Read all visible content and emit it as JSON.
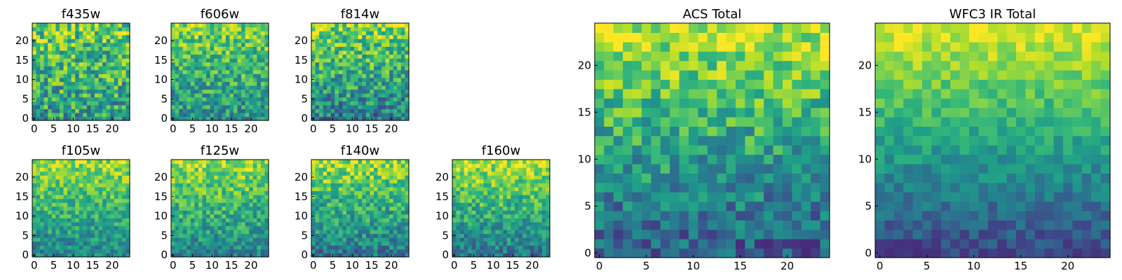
{
  "colormap": "viridis",
  "colors": {
    "background": "#ffffff",
    "axis": "#000000",
    "viridis": [
      "#440154",
      "#482878",
      "#3e4989",
      "#31688e",
      "#26828e",
      "#1f9e89",
      "#35b779",
      "#6ece58",
      "#b5de2b",
      "#fde725"
    ]
  },
  "chart_data": [
    {
      "type": "heatmap",
      "title": "f435w",
      "grid": 25,
      "xticks": [
        "0",
        "5",
        "10",
        "15",
        "20"
      ],
      "yticks": [
        "0",
        "5",
        "10",
        "15",
        "20"
      ],
      "xlim": [
        0,
        24
      ],
      "ylim": [
        0,
        24
      ],
      "gradient_top": 0.75,
      "gradient_bottom": 0.55,
      "noise": 0.55,
      "seed": 11
    },
    {
      "type": "heatmap",
      "title": "f606w",
      "grid": 25,
      "xticks": [
        "0",
        "5",
        "10",
        "15",
        "20"
      ],
      "yticks": [
        "0",
        "5",
        "10",
        "15",
        "20"
      ],
      "xlim": [
        0,
        24
      ],
      "ylim": [
        0,
        24
      ],
      "gradient_top": 0.8,
      "gradient_bottom": 0.5,
      "noise": 0.45,
      "seed": 23
    },
    {
      "type": "heatmap",
      "title": "f814w",
      "grid": 25,
      "xticks": [
        "0",
        "5",
        "10",
        "15",
        "20"
      ],
      "yticks": [
        "0",
        "5",
        "10",
        "15",
        "20"
      ],
      "xlim": [
        0,
        24
      ],
      "ylim": [
        0,
        24
      ],
      "gradient_top": 0.82,
      "gradient_bottom": 0.42,
      "noise": 0.5,
      "seed": 37
    },
    {
      "type": "heatmap",
      "title": "f105w",
      "grid": 25,
      "xticks": [
        "0",
        "5",
        "10",
        "15",
        "20"
      ],
      "yticks": [
        "0",
        "5",
        "10",
        "15",
        "20"
      ],
      "xlim": [
        0,
        24
      ],
      "ylim": [
        0,
        24
      ],
      "gradient_top": 0.85,
      "gradient_bottom": 0.45,
      "noise": 0.35,
      "seed": 41
    },
    {
      "type": "heatmap",
      "title": "f125w",
      "grid": 25,
      "xticks": [
        "0",
        "5",
        "10",
        "15",
        "20"
      ],
      "yticks": [
        "0",
        "5",
        "10",
        "15",
        "20"
      ],
      "xlim": [
        0,
        24
      ],
      "ylim": [
        0,
        24
      ],
      "gradient_top": 0.85,
      "gradient_bottom": 0.45,
      "noise": 0.38,
      "seed": 53
    },
    {
      "type": "heatmap",
      "title": "f140w",
      "grid": 25,
      "xticks": [
        "0",
        "5",
        "10",
        "15",
        "20"
      ],
      "yticks": [
        "0",
        "5",
        "10",
        "15",
        "20"
      ],
      "xlim": [
        0,
        24
      ],
      "ylim": [
        0,
        24
      ],
      "gradient_top": 0.85,
      "gradient_bottom": 0.4,
      "noise": 0.4,
      "seed": 67
    },
    {
      "type": "heatmap",
      "title": "f160w",
      "grid": 25,
      "xticks": [
        "0",
        "5",
        "10",
        "15",
        "20"
      ],
      "yticks": [
        "0",
        "5",
        "10",
        "15",
        "20"
      ],
      "xlim": [
        0,
        24
      ],
      "ylim": [
        0,
        24
      ],
      "gradient_top": 0.88,
      "gradient_bottom": 0.4,
      "noise": 0.38,
      "seed": 79
    },
    {
      "type": "heatmap",
      "title": "ACS Total",
      "grid": 25,
      "xticks": [
        "0",
        "5",
        "10",
        "15",
        "20"
      ],
      "yticks": [
        "0",
        "5",
        "10",
        "15",
        "20"
      ],
      "xlim": [
        0,
        24
      ],
      "ylim": [
        0,
        24
      ],
      "gradient_top": 0.9,
      "gradient_bottom": 0.3,
      "noise": 0.4,
      "seed": 83
    },
    {
      "type": "heatmap",
      "title": "WFC3 IR Total",
      "grid": 25,
      "xticks": [
        "0",
        "5",
        "10",
        "15",
        "20"
      ],
      "yticks": [
        "0",
        "5",
        "10",
        "15",
        "20"
      ],
      "xlim": [
        0,
        24
      ],
      "ylim": [
        0,
        24
      ],
      "gradient_top": 0.95,
      "gradient_bottom": 0.22,
      "noise": 0.22,
      "seed": 97
    }
  ]
}
